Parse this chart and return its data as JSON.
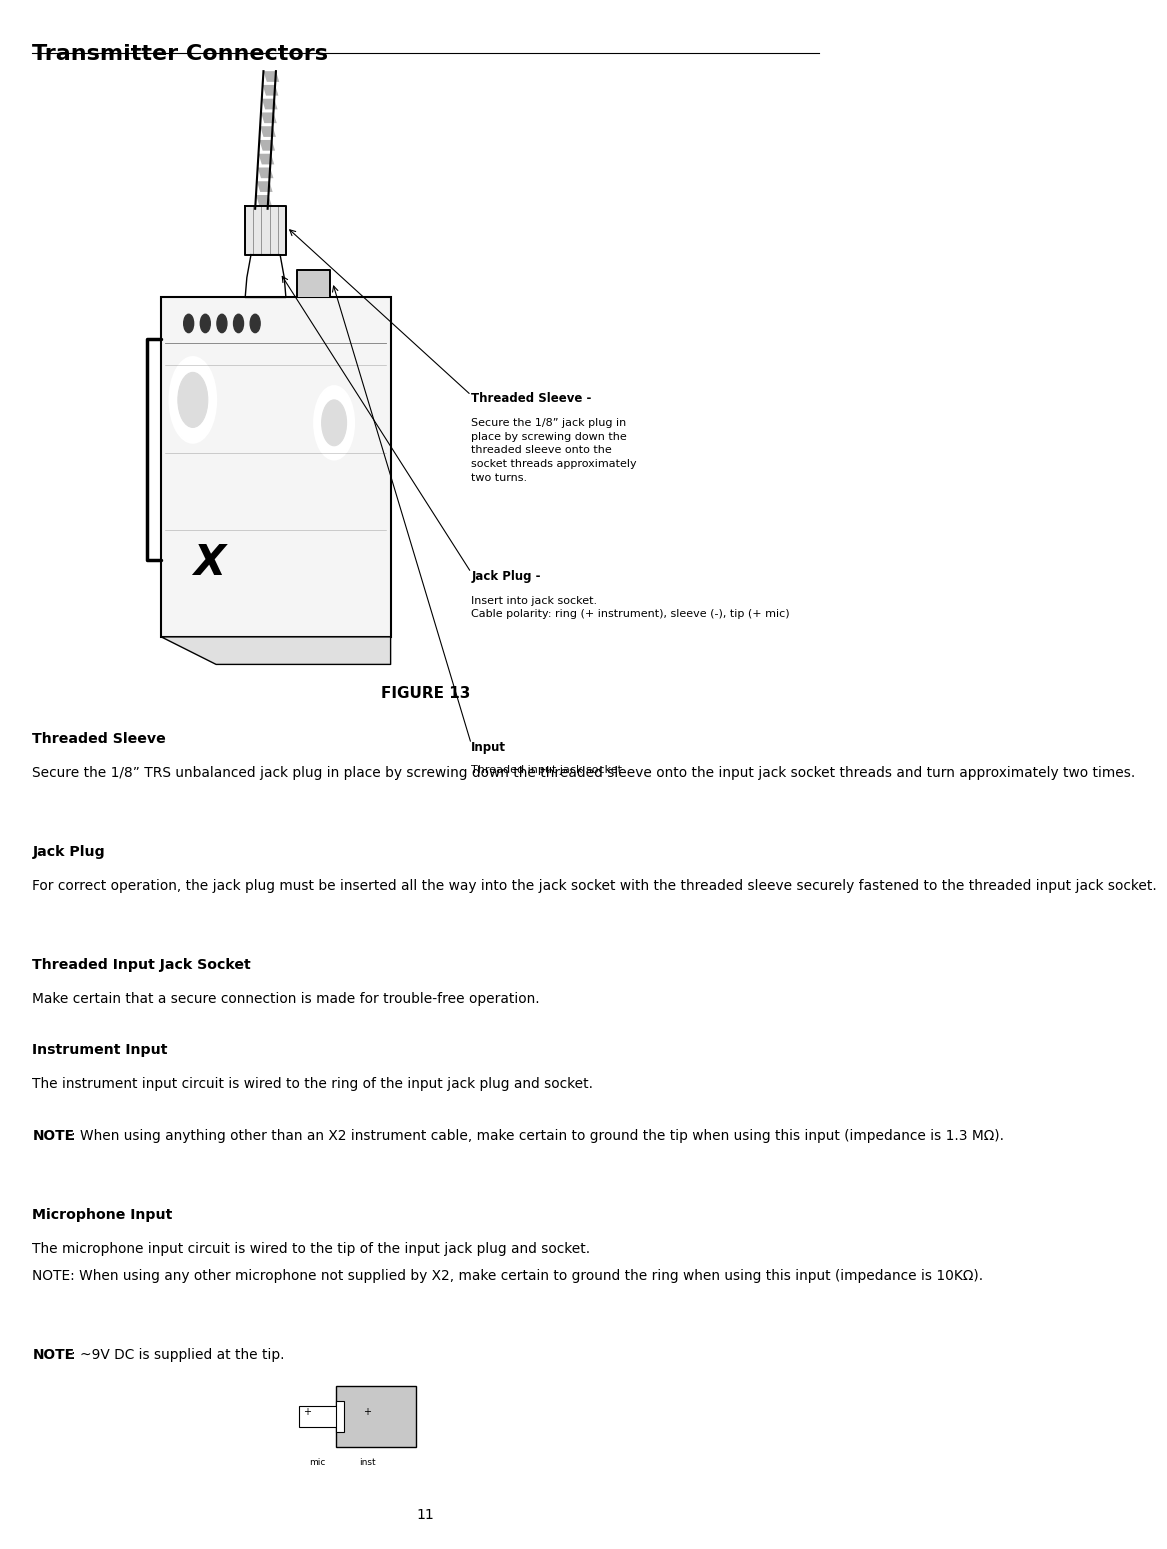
{
  "title": "Transmitter Connectors",
  "figure_label": "FIGURE 13",
  "page_number": "11",
  "background_color": "#ffffff",
  "text_color": "#000000",
  "threaded_sleeve_label": "Threaded Sleeve -",
  "threaded_sleeve_text": "Secure the 1/8” jack plug in\nplace by screwing down the\nthreaded sleeve onto the\nsocket threads approximately\ntwo turns.",
  "jack_plug_label": "Jack Plug -",
  "jack_plug_text": "Insert into jack socket.\nCable polarity: ring (+ instrument), sleeve (-), tip (+ mic)",
  "input_label": "Input",
  "input_text": "Threaded input jack socket",
  "sections": [
    {
      "heading": "Threaded Sleeve",
      "body": "Secure the 1/8” TRS unbalanced jack plug in place by screwing down the threaded sleeve onto the input jack socket threads and turn approximately two times.",
      "note": null
    },
    {
      "heading": "Jack Plug",
      "body": "For correct operation, the jack plug must be inserted all the way into the jack socket with the threaded sleeve securely fastened to the threaded input jack socket.",
      "note": null
    },
    {
      "heading": "Threaded Input Jack Socket",
      "body": "Make certain that a secure connection is made for trouble-free operation.",
      "note": null
    },
    {
      "heading": "Instrument Input",
      "body": "The instrument input circuit is wired to the ring of the input jack plug and socket.",
      "note": "NOTE: When using anything other than an X2 instrument cable, make certain to ground the tip when using this input (impedance is 1.3 MΩ)."
    },
    {
      "heading": "Microphone Input",
      "body": "The microphone input circuit is wired to the tip of the input jack plug and socket.\nNOTE: When using any other microphone not supplied by X2, make certain to ground the ring when using this input (impedance is 10KΩ).",
      "note": "NOTE: ~9V DC is supplied at the tip."
    }
  ]
}
